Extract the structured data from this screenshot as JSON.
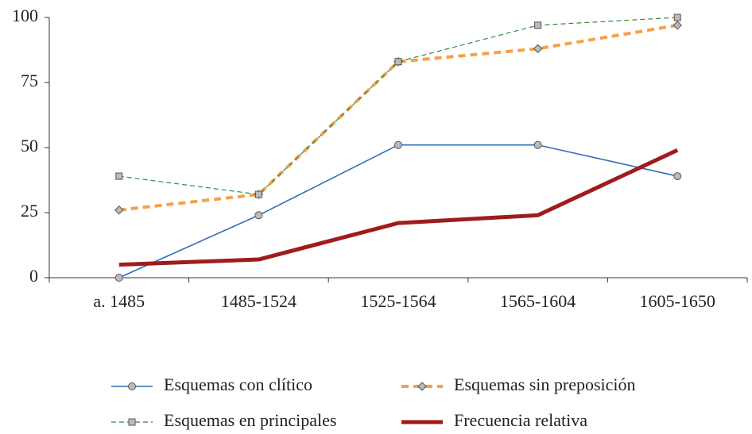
{
  "chart_data": {
    "type": "line",
    "categories": [
      "a. 1485",
      "1485-1524",
      "1525-1564",
      "1565-1604",
      "1605-1650"
    ],
    "series": [
      {
        "name": "Esquemas con clítico",
        "color": "#2e6fb5",
        "marker": "circle",
        "values": [
          0,
          24,
          51,
          51,
          39
        ]
      },
      {
        "name": "Esquemas sin preposición",
        "color": "#f4a14a",
        "marker": "diamond",
        "values": [
          26,
          32,
          83,
          88,
          97
        ]
      },
      {
        "name": "Esquemas en principales",
        "color": "#2e8b3e",
        "marker": "square",
        "values": [
          39,
          32,
          83,
          97,
          100
        ]
      },
      {
        "name": "Frecuencia relativa",
        "color": "#a01c1c",
        "marker": "none",
        "values": [
          5,
          7,
          21,
          24,
          49
        ]
      }
    ],
    "ylim": [
      0,
      100
    ],
    "yticks": [
      0,
      25,
      50,
      75,
      100
    ]
  }
}
